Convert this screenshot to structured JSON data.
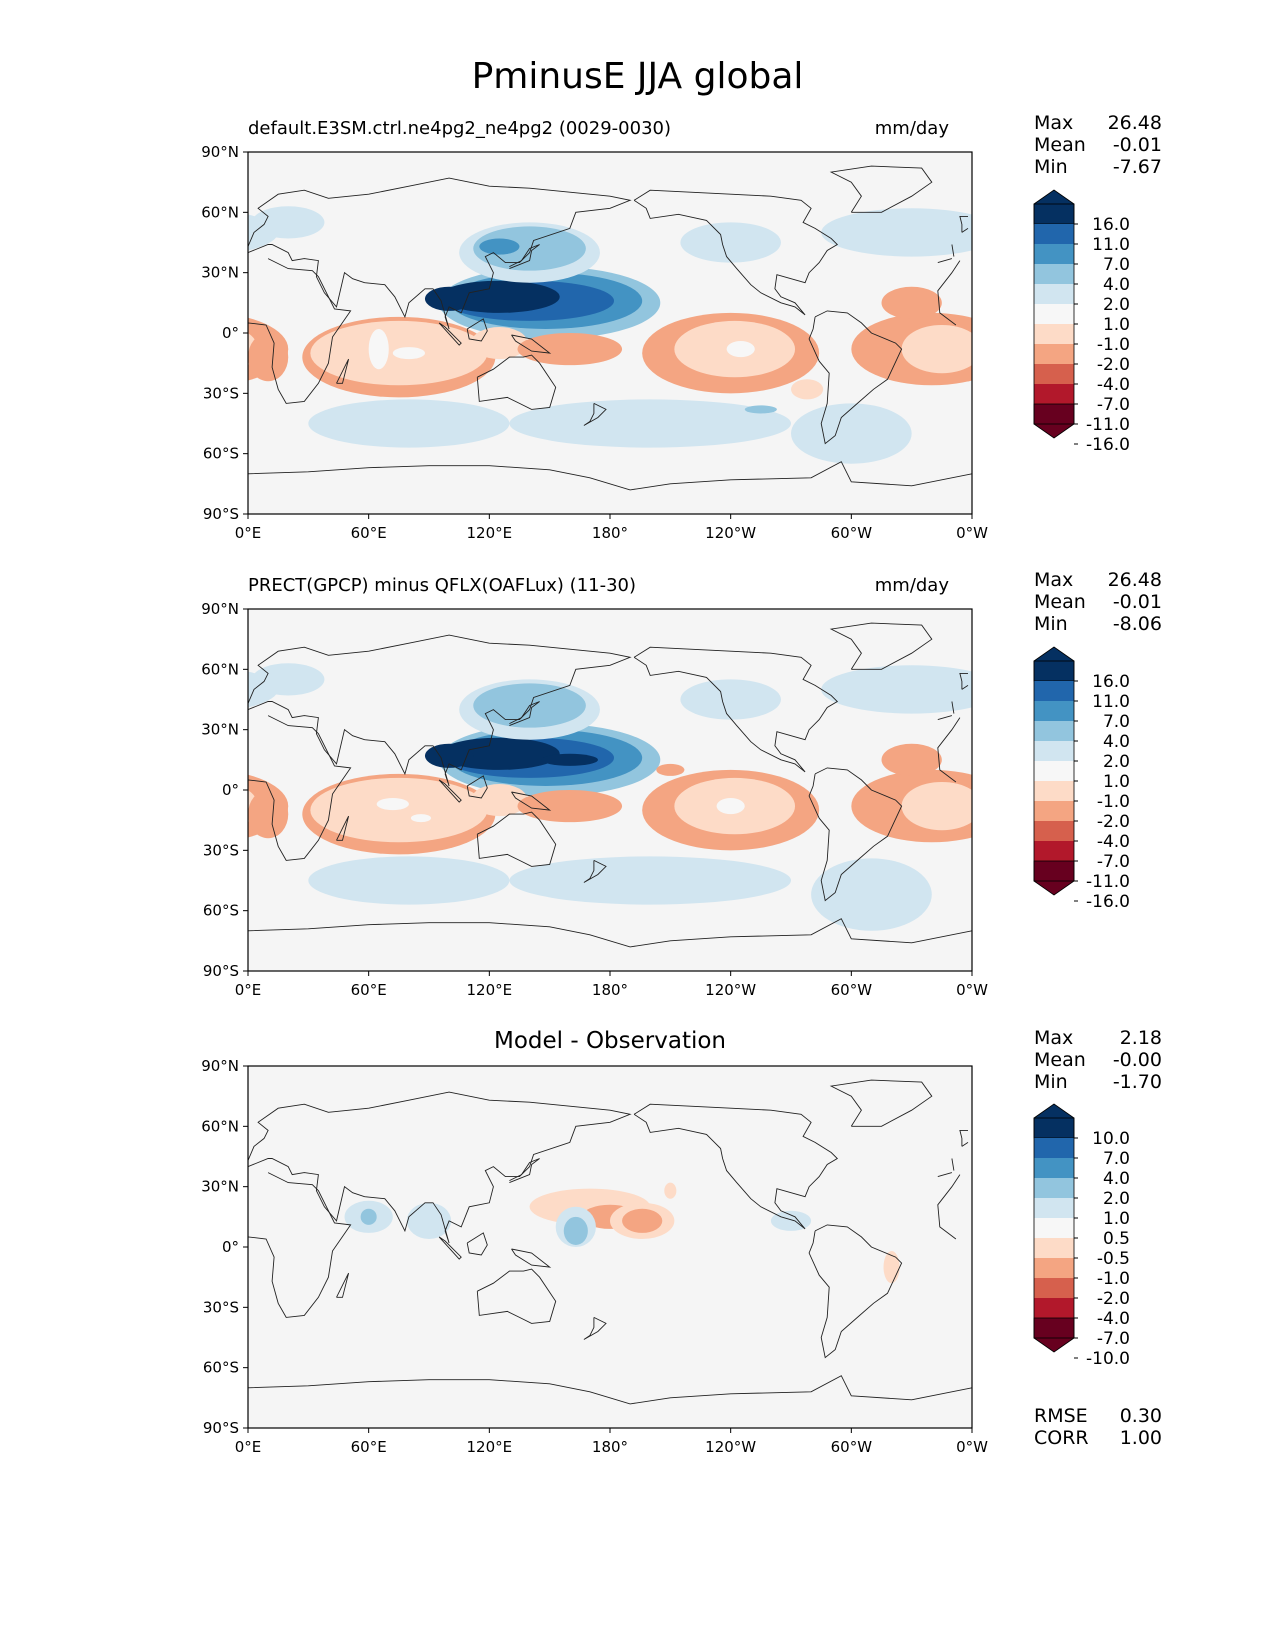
{
  "figure_title": "PminusE JJA global",
  "colors": {
    "land_line": "#222222",
    "ocean_bg": "#f5f5f5",
    "palette": [
      "#67001f",
      "#b2182b",
      "#d6604d",
      "#f4a582",
      "#fddbc7",
      "#f7f7f7",
      "#d1e5f0",
      "#92c5de",
      "#4393c3",
      "#2166ac",
      "#053061"
    ]
  },
  "chart_data": [
    {
      "type": "heatmap",
      "title_left": "default.E3SM.ctrl.ne4pg2_ne4pg2 (0029-0030)",
      "title_right": "mm/day",
      "stats": {
        "max_label": "Max",
        "max": "26.48",
        "mean_label": "Mean",
        "mean": "-0.01",
        "min_label": "Min",
        "min": "-7.67"
      },
      "colorbar_ticks": [
        "16.0",
        "11.0",
        "7.0",
        "4.0",
        "2.0",
        "1.0",
        "-1.0",
        "-2.0",
        "-4.0",
        "-7.0",
        "-11.0",
        "-16.0"
      ],
      "xticks": [
        "0°E",
        "60°E",
        "120°E",
        "180°",
        "120°W",
        "60°W",
        "0°W"
      ],
      "yticks": [
        "90°N",
        "60°N",
        "30°N",
        "0°",
        "30°S",
        "60°S",
        "90°S"
      ],
      "xlim": [
        0,
        360
      ],
      "ylim": [
        -90,
        90
      ]
    },
    {
      "type": "heatmap",
      "title_left": "PRECT(GPCP) minus QFLX(OAFLux) (11-30)",
      "title_right": "mm/day",
      "stats": {
        "max_label": "Max",
        "max": "26.48",
        "mean_label": "Mean",
        "mean": "-0.01",
        "min_label": "Min",
        "min": "-8.06"
      },
      "colorbar_ticks": [
        "16.0",
        "11.0",
        "7.0",
        "4.0",
        "2.0",
        "1.0",
        "-1.0",
        "-2.0",
        "-4.0",
        "-7.0",
        "-11.0",
        "-16.0"
      ],
      "xticks": [
        "0°E",
        "60°E",
        "120°E",
        "180°",
        "120°W",
        "60°W",
        "0°W"
      ],
      "yticks": [
        "90°N",
        "60°N",
        "30°N",
        "0°",
        "30°S",
        "60°S",
        "90°S"
      ],
      "xlim": [
        0,
        360
      ],
      "ylim": [
        -90,
        90
      ]
    },
    {
      "type": "heatmap",
      "title_center": "Model - Observation",
      "stats": {
        "max_label": "Max",
        "max": "2.18",
        "mean_label": "Mean",
        "mean": "-0.00",
        "min_label": "Min",
        "min": "-1.70"
      },
      "colorbar_ticks": [
        "10.0",
        "7.0",
        "4.0",
        "2.0",
        "1.0",
        "0.5",
        "-0.5",
        "-1.0",
        "-2.0",
        "-4.0",
        "-7.0",
        "-10.0"
      ],
      "xticks": [
        "0°E",
        "60°E",
        "120°E",
        "180°",
        "120°W",
        "60°W",
        "0°W"
      ],
      "yticks": [
        "90°N",
        "60°N",
        "30°N",
        "0°",
        "30°S",
        "60°S",
        "90°S"
      ],
      "xlim": [
        0,
        360
      ],
      "ylim": [
        -90,
        90
      ],
      "metrics": {
        "rmse_label": "RMSE",
        "rmse": "0.30",
        "corr_label": "CORR",
        "corr": "1.00"
      }
    }
  ]
}
